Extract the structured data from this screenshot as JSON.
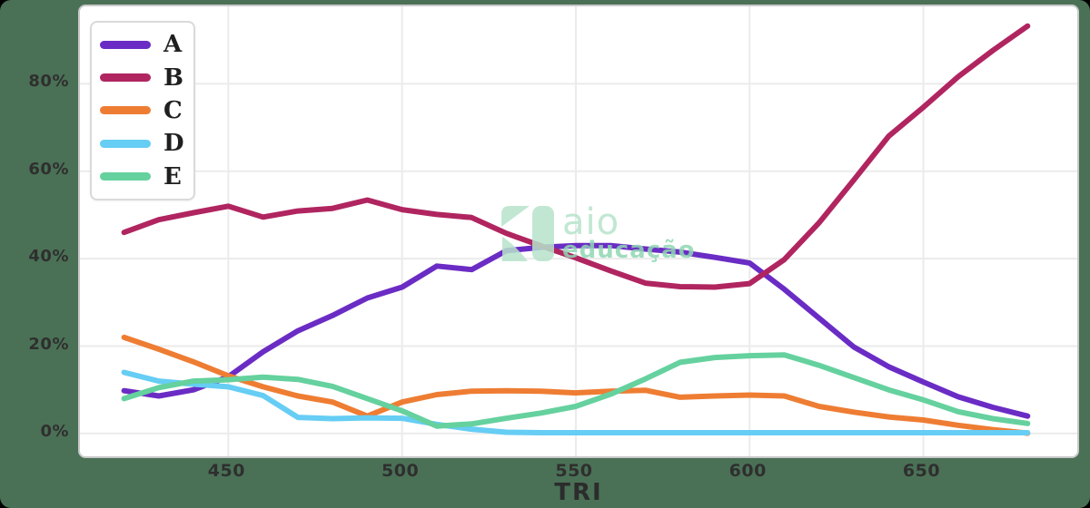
{
  "page": {
    "background_color": "#4a7156",
    "card_color": "#ffffff"
  },
  "chart_data": {
    "type": "line",
    "title": "",
    "xlabel": "TRI",
    "ylabel": "",
    "grid": true,
    "legend_position": "top-left",
    "xlim": [
      407.3,
      694.3
    ],
    "ylim": [
      -5.2,
      97.7
    ],
    "x_ticks": [
      450,
      500,
      550,
      600,
      650
    ],
    "y_ticks": [
      {
        "value": 0,
        "label": "0%"
      },
      {
        "value": 20,
        "label": "20%"
      },
      {
        "value": 40,
        "label": "40%"
      },
      {
        "value": 60,
        "label": "60%"
      },
      {
        "value": 80,
        "label": "80%"
      }
    ],
    "x": [
      420,
      430,
      440,
      450,
      460,
      470,
      480,
      490,
      500,
      510,
      520,
      530,
      540,
      550,
      560,
      570,
      580,
      590,
      600,
      610,
      620,
      630,
      640,
      650,
      660,
      670,
      680
    ],
    "series": [
      {
        "name": "A",
        "color": "#6a2cc4",
        "values": [
          9.8,
          8.6,
          10.0,
          13.0,
          18.7,
          23.5,
          27.0,
          31.0,
          33.5,
          38.3,
          37.5,
          41.8,
          42.6,
          43.0,
          43.0,
          42.2,
          41.5,
          40.3,
          39.0,
          33.0,
          26.4,
          19.8,
          15.3,
          11.8,
          8.4,
          6.0,
          4.0
        ]
      },
      {
        "name": "B",
        "color": "#b02560",
        "values": [
          46.0,
          48.9,
          50.5,
          52.0,
          49.5,
          50.9,
          51.5,
          53.4,
          51.2,
          50.1,
          49.4,
          45.8,
          42.9,
          40.2,
          37.2,
          34.4,
          33.6,
          33.5,
          34.3,
          39.8,
          48.2,
          58.0,
          68.0,
          74.6,
          81.6,
          87.6,
          93.2
        ]
      },
      {
        "name": "C",
        "color": "#ee7d33",
        "values": [
          22.0,
          19.3,
          16.4,
          13.2,
          10.7,
          8.6,
          7.2,
          4.0,
          7.2,
          8.9,
          9.7,
          9.8,
          9.7,
          9.3,
          9.7,
          9.9,
          8.3,
          8.6,
          8.8,
          8.6,
          6.2,
          4.9,
          3.8,
          3.1,
          1.9,
          0.9,
          0.1
        ]
      },
      {
        "name": "D",
        "color": "#66cdf4",
        "values": [
          14.0,
          12.0,
          11.3,
          10.7,
          8.7,
          3.7,
          3.4,
          3.6,
          3.5,
          2.1,
          1.0,
          0.3,
          0.2,
          0.2,
          0.2,
          0.2,
          0.2,
          0.2,
          0.2,
          0.2,
          0.2,
          0.2,
          0.2,
          0.2,
          0.2,
          0.2,
          0.2
        ]
      },
      {
        "name": "E",
        "color": "#65d19e",
        "values": [
          8.0,
          10.5,
          12.0,
          12.3,
          12.9,
          12.4,
          10.8,
          8.0,
          5.2,
          1.7,
          2.2,
          3.5,
          4.7,
          6.2,
          9.0,
          12.5,
          16.3,
          17.4,
          17.8,
          18.0,
          15.6,
          12.8,
          10.0,
          7.7,
          5.0,
          3.4,
          2.3
        ]
      }
    ],
    "grid_color": "#ebebeb",
    "tick_color": "#2f2f2f"
  },
  "watermark": {
    "brand": "aio",
    "subtitle": "educação",
    "logo_color": "#b7e3cc"
  }
}
